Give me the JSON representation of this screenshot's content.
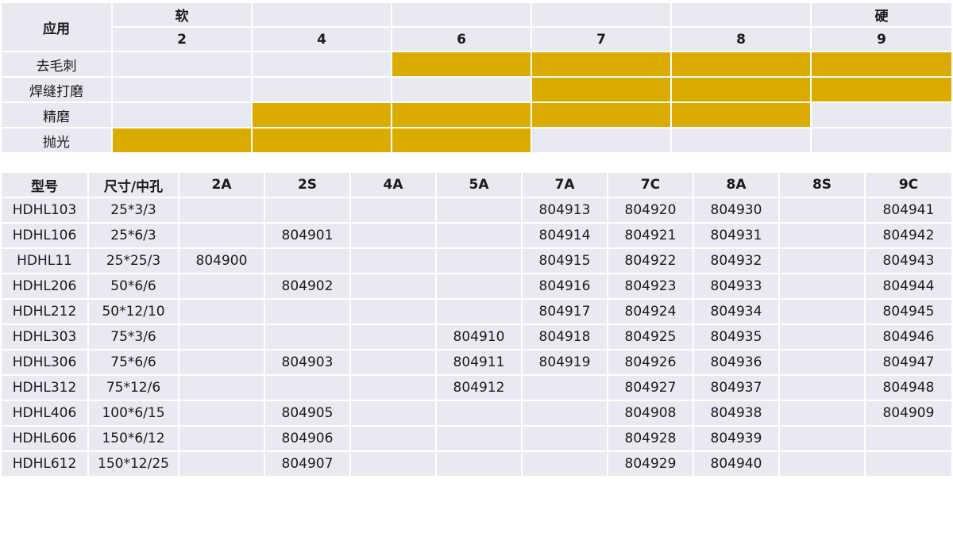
{
  "grid": {
    "app_header": "应用",
    "soft_label": "软",
    "hard_label": "硬",
    "levels": [
      "2",
      "4",
      "6",
      "7",
      "8",
      "9"
    ],
    "rows": [
      {
        "label": "去毛刺",
        "filled": [
          false,
          false,
          true,
          true,
          true,
          true
        ]
      },
      {
        "label": "焊缝打磨",
        "filled": [
          false,
          false,
          false,
          true,
          true,
          true
        ]
      },
      {
        "label": "精磨",
        "filled": [
          false,
          true,
          true,
          true,
          true,
          false
        ]
      },
      {
        "label": "抛光",
        "filled": [
          true,
          true,
          true,
          false,
          false,
          false
        ]
      }
    ],
    "colors": {
      "fill": "#dcab00",
      "cell": "#e9e9f1"
    }
  },
  "products": {
    "headers": [
      "型号",
      "尺寸/中孔",
      "2A",
      "2S",
      "4A",
      "5A",
      "7A",
      "7C",
      "8A",
      "8S",
      "9C"
    ],
    "rows": [
      [
        "HDHL103",
        "25*3/3",
        "",
        "",
        "",
        "",
        "804913",
        "804920",
        "804930",
        "",
        "804941"
      ],
      [
        "HDHL106",
        "25*6/3",
        "",
        "804901",
        "",
        "",
        "804914",
        "804921",
        "804931",
        "",
        "804942"
      ],
      [
        "HDHL11",
        "25*25/3",
        "804900",
        "",
        "",
        "",
        "804915",
        "804922",
        "804932",
        "",
        "804943"
      ],
      [
        "HDHL206",
        "50*6/6",
        "",
        "804902",
        "",
        "",
        "804916",
        "804923",
        "804933",
        "",
        "804944"
      ],
      [
        "HDHL212",
        "50*12/10",
        "",
        "",
        "",
        "",
        "804917",
        "804924",
        "804934",
        "",
        "804945"
      ],
      [
        "HDHL303",
        "75*3/6",
        "",
        "",
        "",
        "804910",
        "804918",
        "804925",
        "804935",
        "",
        "804946"
      ],
      [
        "HDHL306",
        "75*6/6",
        "",
        "804903",
        "",
        "804911",
        "804919",
        "804926",
        "804936",
        "",
        "804947"
      ],
      [
        "HDHL312",
        "75*12/6",
        "",
        "",
        "",
        "804912",
        "",
        "804927",
        "804937",
        "",
        "804948"
      ],
      [
        "HDHL406",
        "100*6/15",
        "",
        "804905",
        "",
        "",
        "",
        "804908",
        "804938",
        "",
        "804909"
      ],
      [
        "HDHL606",
        "150*6/12",
        "",
        "804906",
        "",
        "",
        "",
        "804928",
        "804939",
        "",
        ""
      ],
      [
        "HDHL612",
        "150*12/25",
        "",
        "804907",
        "",
        "",
        "",
        "804929",
        "804940",
        "",
        ""
      ]
    ]
  }
}
